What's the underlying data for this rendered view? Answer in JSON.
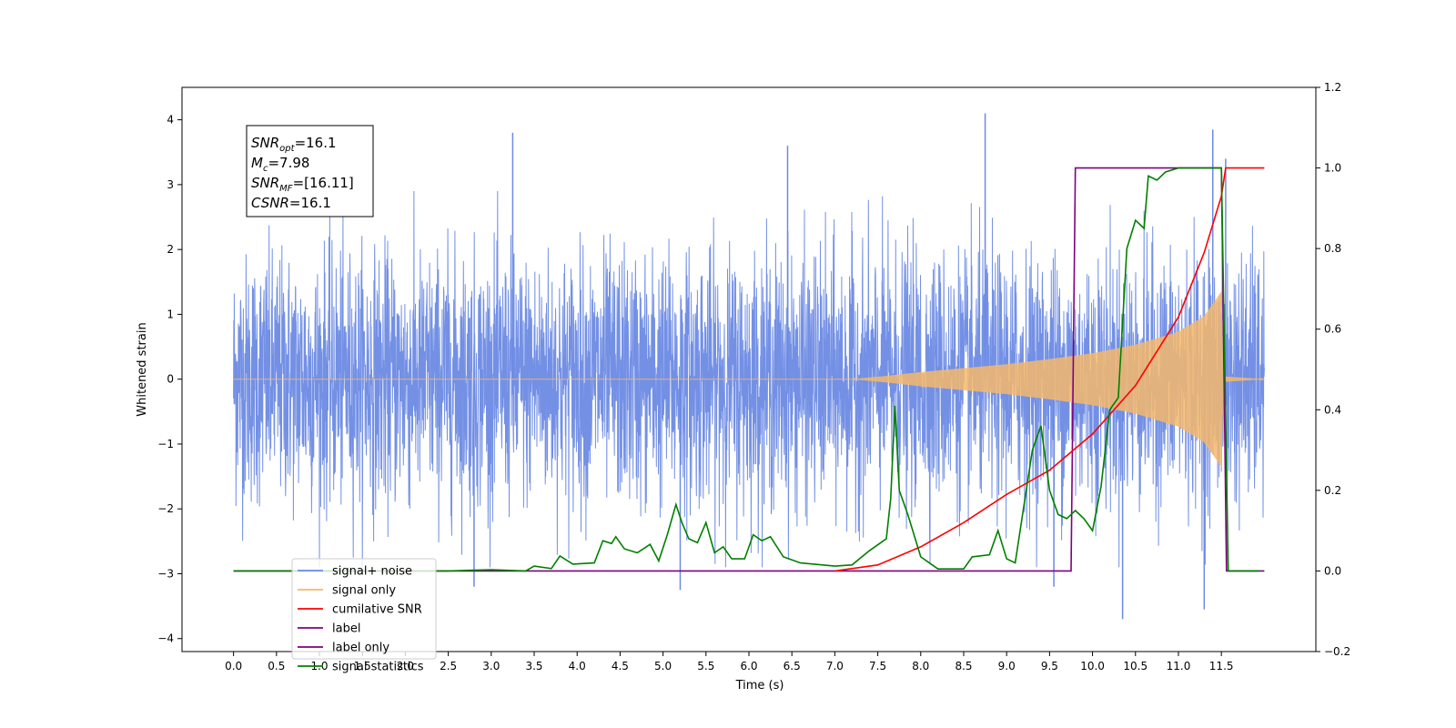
{
  "chart_data": {
    "type": "line",
    "xlabel": "Time (s)",
    "ylabel": "Whitened strain",
    "xlim": [
      -0.6,
      12.6
    ],
    "ylim": [
      -4.2,
      4.5
    ],
    "y2lim": [
      -0.2,
      1.2
    ],
    "x_ticks": [
      "0.0",
      "0.5",
      "1.0",
      "1.5",
      "2.0",
      "2.5",
      "3.0",
      "3.5",
      "4.0",
      "4.5",
      "5.0",
      "5.5",
      "6.0",
      "6.5",
      "7.0",
      "7.5",
      "8.0",
      "8.5",
      "9.0",
      "9.5",
      "10.0",
      "10.5",
      "11.0",
      "11.5"
    ],
    "y_ticks": [
      "4",
      "3",
      "2",
      "1",
      "0",
      "−1",
      "−2",
      "−3",
      "−4"
    ],
    "y2_ticks": [
      "1.2",
      "1.0",
      "0.8",
      "0.6",
      "0.4",
      "0.2",
      "0.0",
      "−0.2"
    ],
    "annotation": {
      "lines": [
        {
          "sym": "SNR",
          "sub": "opt",
          "value": "=16.1"
        },
        {
          "sym": "M",
          "sub": "c",
          "value": "=7.98"
        },
        {
          "sym": "SNR",
          "sub": "MF",
          "value": "=[16.11]"
        },
        {
          "sym": "CSNR",
          "sub": "",
          "value": "=16.1"
        }
      ]
    },
    "legend": {
      "placement": "lower-left",
      "entries": [
        {
          "label": "signal+ noise",
          "color": "#6c8ae4"
        },
        {
          "label": "signal only",
          "color": "#f5b86c"
        },
        {
          "label": "cumilative SNR",
          "color": "#ff0000"
        },
        {
          "label": "label",
          "color": "#800080"
        },
        {
          "label": "label only",
          "color": "#800080"
        },
        {
          "label": "signal statistics",
          "color": "#008000"
        }
      ]
    },
    "noise_series": {
      "name": "signal+ noise",
      "color": "#6c8ae4",
      "x_range": [
        0.0,
        12.0
      ],
      "typical_peak": 2.3,
      "extremes": [
        {
          "x": 3.25,
          "y": 3.8
        },
        {
          "x": 6.45,
          "y": 3.6
        },
        {
          "x": 8.75,
          "y": 4.1
        },
        {
          "x": 11.4,
          "y": 3.85
        },
        {
          "x": 11.55,
          "y": 3.4
        },
        {
          "x": 10.35,
          "y": -3.7
        },
        {
          "x": 11.3,
          "y": -3.55
        },
        {
          "x": 5.2,
          "y": -3.25
        },
        {
          "x": 2.8,
          "y": -3.2
        },
        {
          "x": 9.55,
          "y": -3.2
        }
      ]
    },
    "signal_only": {
      "name": "signal only",
      "color": "#f5b86c",
      "envelope": [
        [
          0,
          0
        ],
        [
          7.2,
          0
        ],
        [
          7.6,
          0.05
        ],
        [
          8.0,
          0.11
        ],
        [
          8.5,
          0.17
        ],
        [
          9.0,
          0.23
        ],
        [
          9.5,
          0.31
        ],
        [
          10.0,
          0.4
        ],
        [
          10.5,
          0.53
        ],
        [
          11.0,
          0.73
        ],
        [
          11.3,
          0.97
        ],
        [
          11.45,
          1.25
        ],
        [
          11.5,
          1.35
        ],
        [
          11.52,
          0.2
        ],
        [
          11.55,
          0.04
        ],
        [
          12.0,
          0
        ]
      ]
    },
    "cumulative_snr": {
      "name": "cumilative SNR",
      "color": "#ff0000",
      "points": [
        [
          7.0,
          0
        ],
        [
          7.5,
          0.015
        ],
        [
          8.0,
          0.06
        ],
        [
          8.5,
          0.12
        ],
        [
          9.0,
          0.19
        ],
        [
          9.5,
          0.25
        ],
        [
          10.0,
          0.34
        ],
        [
          10.5,
          0.46
        ],
        [
          11.0,
          0.63
        ],
        [
          11.3,
          0.79
        ],
        [
          11.5,
          0.93
        ],
        [
          11.55,
          1.0
        ],
        [
          12.0,
          1.0
        ]
      ]
    },
    "label_series": {
      "name": "label",
      "color": "#800080",
      "points": [
        [
          0,
          0
        ],
        [
          9.75,
          0
        ],
        [
          9.8,
          1
        ],
        [
          11.5,
          1
        ],
        [
          11.56,
          0
        ],
        [
          12.0,
          0
        ]
      ]
    },
    "signal_statistics": {
      "name": "signal statistics",
      "color": "#008000",
      "points": [
        [
          0,
          0
        ],
        [
          2.5,
          0
        ],
        [
          3.0,
          0.003
        ],
        [
          3.4,
          0.0
        ],
        [
          3.5,
          0.012
        ],
        [
          3.7,
          0.006
        ],
        [
          3.8,
          0.037
        ],
        [
          3.95,
          0.017
        ],
        [
          4.2,
          0.02
        ],
        [
          4.3,
          0.075
        ],
        [
          4.4,
          0.068
        ],
        [
          4.45,
          0.085
        ],
        [
          4.55,
          0.055
        ],
        [
          4.7,
          0.045
        ],
        [
          4.85,
          0.066
        ],
        [
          4.95,
          0.025
        ],
        [
          5.05,
          0.09
        ],
        [
          5.15,
          0.165
        ],
        [
          5.22,
          0.12
        ],
        [
          5.3,
          0.08
        ],
        [
          5.4,
          0.07
        ],
        [
          5.5,
          0.12
        ],
        [
          5.6,
          0.045
        ],
        [
          5.7,
          0.06
        ],
        [
          5.8,
          0.03
        ],
        [
          5.95,
          0.03
        ],
        [
          6.05,
          0.09
        ],
        [
          6.15,
          0.075
        ],
        [
          6.25,
          0.085
        ],
        [
          6.4,
          0.035
        ],
        [
          6.6,
          0.02
        ],
        [
          7.0,
          0.012
        ],
        [
          7.2,
          0.015
        ],
        [
          7.4,
          0.05
        ],
        [
          7.6,
          0.08
        ],
        [
          7.65,
          0.18
        ],
        [
          7.7,
          0.41
        ],
        [
          7.75,
          0.2
        ],
        [
          7.85,
          0.14
        ],
        [
          8.0,
          0.035
        ],
        [
          8.2,
          0.005
        ],
        [
          8.5,
          0.005
        ],
        [
          8.6,
          0.035
        ],
        [
          8.8,
          0.04
        ],
        [
          8.9,
          0.1
        ],
        [
          9.0,
          0.03
        ],
        [
          9.1,
          0.02
        ],
        [
          9.3,
          0.3
        ],
        [
          9.4,
          0.36
        ],
        [
          9.5,
          0.2
        ],
        [
          9.6,
          0.14
        ],
        [
          9.7,
          0.13
        ],
        [
          9.8,
          0.15
        ],
        [
          9.9,
          0.13
        ],
        [
          10.0,
          0.1
        ],
        [
          10.1,
          0.21
        ],
        [
          10.2,
          0.4
        ],
        [
          10.3,
          0.43
        ],
        [
          10.4,
          0.8
        ],
        [
          10.5,
          0.87
        ],
        [
          10.6,
          0.85
        ],
        [
          10.65,
          0.98
        ],
        [
          10.75,
          0.97
        ],
        [
          10.85,
          0.99
        ],
        [
          11.0,
          1.0
        ],
        [
          11.5,
          1.0
        ],
        [
          11.58,
          0.0
        ],
        [
          11.95,
          0.0
        ]
      ]
    }
  }
}
